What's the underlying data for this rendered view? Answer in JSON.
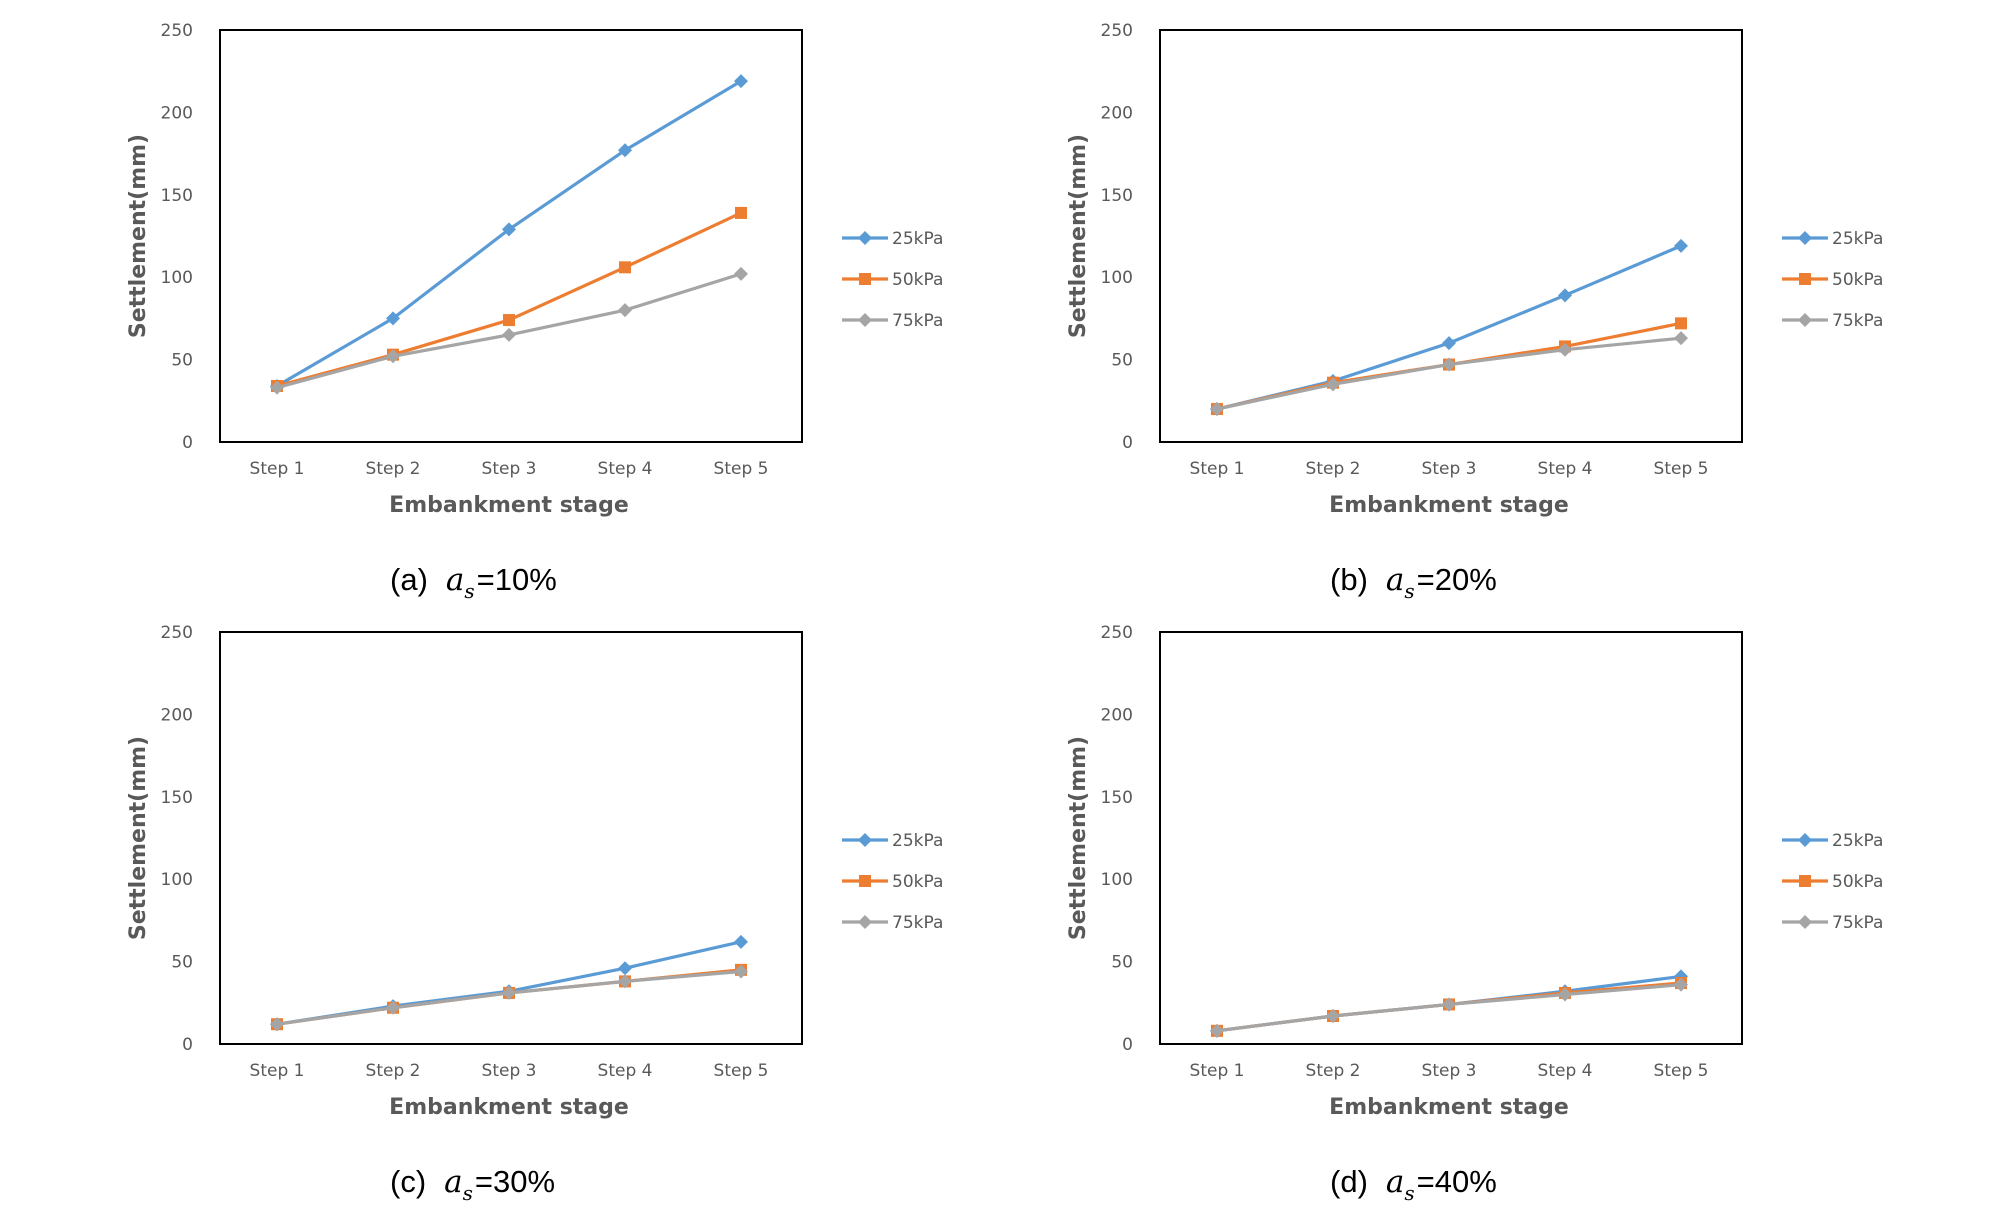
{
  "figure": {
    "x_categories": [
      "Step 1",
      "Step 2",
      "Step 3",
      "Step 4",
      "Step 5"
    ],
    "y_ticks": [
      "0",
      "50",
      "100",
      "150",
      "200",
      "250"
    ],
    "xlabel": "Embankment stage",
    "ylabel": "Settlement(mm)",
    "series_names": [
      "25kPa",
      "50kPa",
      "75kPa"
    ],
    "series_colors": [
      "#5B9BD5",
      "#ED7D31",
      "#A5A5A5"
    ],
    "series_markers": [
      "diamond",
      "square",
      "diamond"
    ]
  },
  "chart_data": [
    {
      "type": "line",
      "panel_label": "(a)",
      "param_symbol": "a",
      "param_subscript": "s",
      "param_value": "=10%",
      "categories": [
        "Step 1",
        "Step 2",
        "Step 3",
        "Step 4",
        "Step 5"
      ],
      "xlabel": "Embankment stage",
      "ylabel": "Settlement(mm)",
      "ylim": [
        0,
        250
      ],
      "series": [
        {
          "name": "25kPa",
          "values": [
            34,
            75,
            129,
            177,
            219
          ]
        },
        {
          "name": "50kPa",
          "values": [
            34,
            53,
            74,
            106,
            139
          ]
        },
        {
          "name": "75kPa",
          "values": [
            33,
            52,
            65,
            80,
            102
          ]
        }
      ]
    },
    {
      "type": "line",
      "panel_label": "(b)",
      "param_symbol": "a",
      "param_subscript": "s",
      "param_value": "=20%",
      "categories": [
        "Step 1",
        "Step 2",
        "Step 3",
        "Step 4",
        "Step 5"
      ],
      "xlabel": "Embankment stage",
      "ylabel": "Settlement(mm)",
      "ylim": [
        0,
        250
      ],
      "series": [
        {
          "name": "25kPa",
          "values": [
            20,
            37,
            60,
            89,
            119
          ]
        },
        {
          "name": "50kPa",
          "values": [
            20,
            36,
            47,
            58,
            72
          ]
        },
        {
          "name": "75kPa",
          "values": [
            20,
            35,
            47,
            56,
            63
          ]
        }
      ]
    },
    {
      "type": "line",
      "panel_label": "(c)",
      "param_symbol": "a",
      "param_subscript": "s",
      "param_value": "=30%",
      "categories": [
        "Step 1",
        "Step 2",
        "Step 3",
        "Step 4",
        "Step 5"
      ],
      "xlabel": "Embankment stage",
      "ylabel": "Settlement(mm)",
      "ylim": [
        0,
        250
      ],
      "series": [
        {
          "name": "25kPa",
          "values": [
            12,
            23,
            32,
            46,
            62
          ]
        },
        {
          "name": "50kPa",
          "values": [
            12,
            22,
            31,
            38,
            45
          ]
        },
        {
          "name": "75kPa",
          "values": [
            12,
            22,
            31,
            38,
            44
          ]
        }
      ]
    },
    {
      "type": "line",
      "panel_label": "(d)",
      "param_symbol": "a",
      "param_subscript": "s",
      "param_value": "=40%",
      "categories": [
        "Step 1",
        "Step 2",
        "Step 3",
        "Step 4",
        "Step 5"
      ],
      "xlabel": "Embankment stage",
      "ylabel": "Settlement(mm)",
      "ylim": [
        0,
        250
      ],
      "series": [
        {
          "name": "25kPa",
          "values": [
            8,
            17,
            24,
            32,
            41
          ]
        },
        {
          "name": "50kPa",
          "values": [
            8,
            17,
            24,
            31,
            37
          ]
        },
        {
          "name": "75kPa",
          "values": [
            8,
            17,
            24,
            30,
            36
          ]
        }
      ]
    }
  ]
}
